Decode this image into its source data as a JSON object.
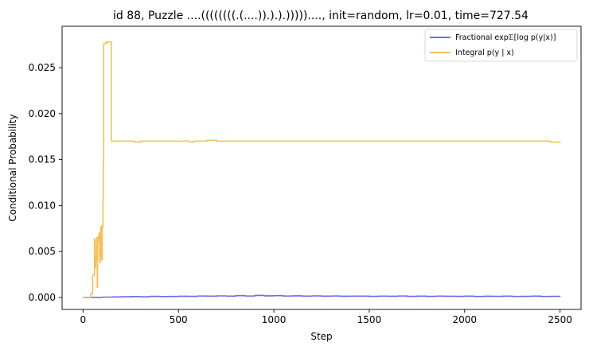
{
  "chart_data": {
    "type": "line",
    "title": "id 88, Puzzle ....((((((((.(....)).).).)))))...., init=random, lr=0.01, time=727.54",
    "xlabel": "Step",
    "ylabel": "Conditional Probability",
    "xlim": [
      -110,
      2610
    ],
    "ylim": [
      -0.0013,
      0.0295
    ],
    "xticks": [
      0,
      500,
      1000,
      1500,
      2000,
      2500
    ],
    "yticks": [
      0.0,
      0.005,
      0.01,
      0.015,
      0.02,
      0.025
    ],
    "ytick_labels": [
      "0.000",
      "0.005",
      "0.010",
      "0.015",
      "0.020",
      "0.025"
    ],
    "grid": false,
    "legend_position": "top-right",
    "series": [
      {
        "name": "Fractional exp𝔼[log p(y|x)]",
        "color": "#5b5bdf",
        "x": [
          0,
          50,
          100,
          150,
          200,
          250,
          300,
          350,
          400,
          450,
          500,
          550,
          600,
          650,
          700,
          750,
          800,
          850,
          900,
          950,
          1000,
          1050,
          1100,
          1150,
          1200,
          1250,
          1300,
          1350,
          1400,
          1450,
          1500,
          1550,
          1600,
          1650,
          1700,
          1750,
          1800,
          1850,
          1900,
          1950,
          2000,
          2050,
          2100,
          2150,
          2200,
          2250,
          2300,
          2350,
          2400,
          2450,
          2500
        ],
        "y": [
          0.0,
          1e-05,
          4e-05,
          6e-05,
          8e-05,
          0.0001,
          8e-05,
          0.00012,
          0.0001,
          0.00011,
          0.00013,
          0.00012,
          0.00016,
          0.00014,
          0.00017,
          0.00015,
          0.0002,
          0.00016,
          0.00022,
          0.00018,
          0.0002,
          0.00016,
          0.00018,
          0.00015,
          0.00017,
          0.00014,
          0.00016,
          0.00013,
          0.00015,
          0.00014,
          0.00012,
          0.00015,
          0.00013,
          0.00016,
          0.00012,
          0.00014,
          0.00012,
          0.00015,
          0.00013,
          0.00012,
          0.00014,
          0.00011,
          0.00013,
          0.00012,
          0.00014,
          0.00011,
          0.00012,
          0.00014,
          0.00011,
          0.00012,
          0.00011
        ]
      },
      {
        "name": "Integral p(y | x)",
        "color": "#f5b942",
        "x": [
          0,
          20,
          35,
          40,
          45,
          50,
          55,
          58,
          60,
          62,
          64,
          66,
          68,
          70,
          72,
          74,
          76,
          78,
          80,
          82,
          84,
          86,
          88,
          90,
          92,
          94,
          96,
          98,
          100,
          102,
          104,
          106,
          108,
          110,
          112,
          114,
          116,
          118,
          120,
          122,
          125,
          130,
          135,
          140,
          145,
          148,
          150,
          170,
          200,
          260,
          270,
          300,
          400,
          500,
          560,
          580,
          620,
          650,
          700,
          800,
          1000,
          1500,
          2000,
          2400,
          2450,
          2500
        ],
        "y": [
          0.0,
          0.0,
          0.0,
          0.0004,
          0.0004,
          0.0024,
          0.0024,
          0.0026,
          0.0064,
          0.0033,
          0.0033,
          0.0045,
          0.004,
          0.006,
          0.0065,
          0.0011,
          0.006,
          0.0066,
          0.0065,
          0.0062,
          0.007,
          0.0045,
          0.0038,
          0.0042,
          0.0077,
          0.0052,
          0.0075,
          0.0041,
          0.0078,
          0.0076,
          0.0105,
          0.0148,
          0.0276,
          0.0276,
          0.0276,
          0.0276,
          0.0276,
          0.0276,
          0.0278,
          0.0277,
          0.0278,
          0.0278,
          0.0278,
          0.0278,
          0.0278,
          0.017,
          0.017,
          0.017,
          0.017,
          0.017,
          0.0169,
          0.017,
          0.017,
          0.017,
          0.0169,
          0.017,
          0.017,
          0.0171,
          0.017,
          0.017,
          0.017,
          0.017,
          0.017,
          0.017,
          0.0169,
          0.017
        ]
      }
    ]
  }
}
